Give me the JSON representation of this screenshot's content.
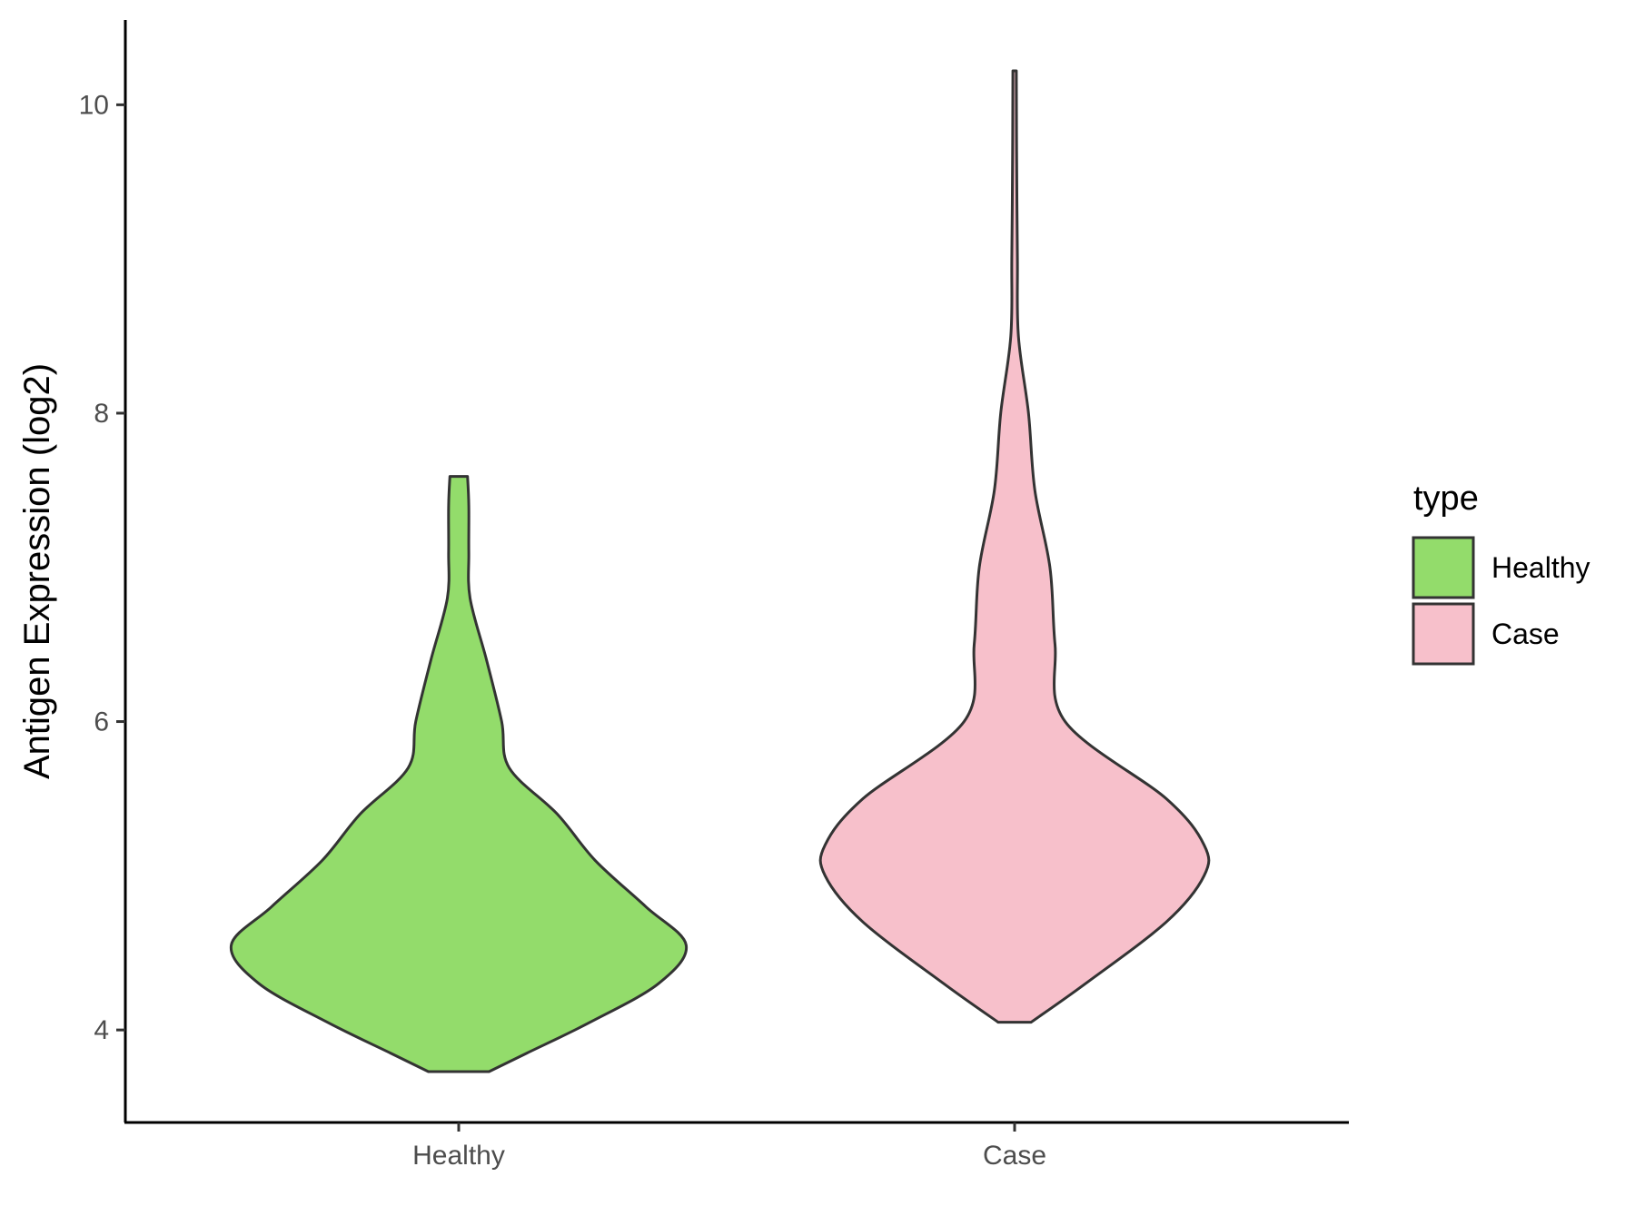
{
  "chart_data": {
    "type": "violin",
    "title": "",
    "xlabel": "",
    "ylabel": "Antigen Expression (log2)",
    "ylim": [
      3.4,
      10.55
    ],
    "yticks": [
      4,
      6,
      8,
      10
    ],
    "categories": [
      "Healthy",
      "Case"
    ],
    "legend": {
      "title": "type",
      "position": "right",
      "entries": [
        {
          "label": "Healthy",
          "color": "#93DC6B"
        },
        {
          "label": "Case",
          "color": "#F7C0CB"
        }
      ]
    },
    "grid": false,
    "series": [
      {
        "name": "Healthy",
        "color": "#93DC6B",
        "min": 3.73,
        "max": 7.59,
        "density_profile": [
          {
            "y": 3.73,
            "halfwidth": 0.12
          },
          {
            "y": 3.85,
            "halfwidth": 0.27
          },
          {
            "y": 4.05,
            "halfwidth": 0.52
          },
          {
            "y": 4.3,
            "halfwidth": 0.79
          },
          {
            "y": 4.55,
            "halfwidth": 0.9
          },
          {
            "y": 4.8,
            "halfwidth": 0.74
          },
          {
            "y": 5.1,
            "halfwidth": 0.54
          },
          {
            "y": 5.4,
            "halfwidth": 0.39
          },
          {
            "y": 5.7,
            "halfwidth": 0.2
          },
          {
            "y": 6.0,
            "halfwidth": 0.17
          },
          {
            "y": 6.4,
            "halfwidth": 0.11
          },
          {
            "y": 6.8,
            "halfwidth": 0.045
          },
          {
            "y": 7.1,
            "halfwidth": 0.04
          },
          {
            "y": 7.4,
            "halfwidth": 0.04
          },
          {
            "y": 7.59,
            "halfwidth": 0.035
          }
        ]
      },
      {
        "name": "Case",
        "color": "#F7C0CB",
        "min": 4.05,
        "max": 10.22,
        "density_profile": [
          {
            "y": 4.05,
            "halfwidth": 0.065
          },
          {
            "y": 4.3,
            "halfwidth": 0.28
          },
          {
            "y": 4.7,
            "halfwidth": 0.6
          },
          {
            "y": 5.0,
            "halfwidth": 0.75
          },
          {
            "y": 5.2,
            "halfwidth": 0.75
          },
          {
            "y": 5.5,
            "halfwidth": 0.6
          },
          {
            "y": 6.0,
            "halfwidth": 0.2
          },
          {
            "y": 6.5,
            "halfwidth": 0.16
          },
          {
            "y": 7.0,
            "halfwidth": 0.14
          },
          {
            "y": 7.5,
            "halfwidth": 0.08
          },
          {
            "y": 8.0,
            "halfwidth": 0.055
          },
          {
            "y": 8.5,
            "halfwidth": 0.015
          },
          {
            "y": 9.0,
            "halfwidth": 0.011
          },
          {
            "y": 9.7,
            "halfwidth": 0.008
          },
          {
            "y": 10.22,
            "halfwidth": 0.007
          }
        ]
      }
    ]
  }
}
